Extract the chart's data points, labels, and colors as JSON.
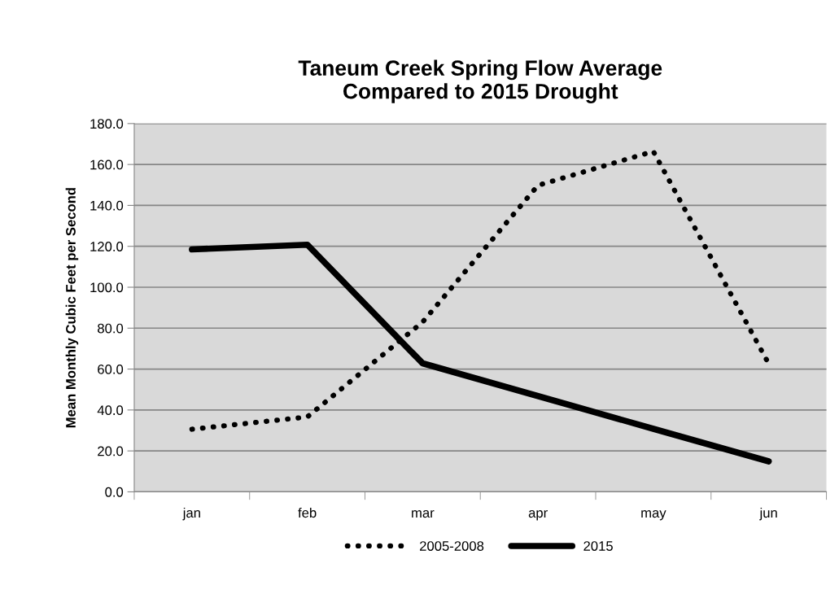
{
  "chart_data": {
    "type": "line",
    "title": "Taneum Creek Spring Flow Average\nCompared to 2015 Drought",
    "ylabel": "Mean Monthly Cubic Feet per Second",
    "categories": [
      "jan",
      "feb",
      "mar",
      "apr",
      "may",
      "jun"
    ],
    "series": [
      {
        "name": "2005-2008",
        "color": "#000000",
        "line_style": "dotted",
        "values": [
          30.6,
          36.6,
          83.0,
          149.8,
          166.4,
          62.6
        ]
      },
      {
        "name": "2015",
        "color": "#000000",
        "line_style": "solid",
        "values": [
          118.5,
          120.8,
          62.8,
          46.8,
          30.8,
          14.9
        ]
      }
    ],
    "ylim": [
      0,
      180
    ],
    "yticks": [
      {
        "value": 0,
        "label": "0.0"
      },
      {
        "value": 20,
        "label": "20.0"
      },
      {
        "value": 40,
        "label": "40.0"
      },
      {
        "value": 60,
        "label": "60.0"
      },
      {
        "value": 80,
        "label": "80.0"
      },
      {
        "value": 100,
        "label": "100.0"
      },
      {
        "value": 120,
        "label": "120.0"
      },
      {
        "value": 140,
        "label": "140.0"
      },
      {
        "value": 160,
        "label": "160.0"
      },
      {
        "value": 180,
        "label": "180.0"
      }
    ],
    "grid": "y",
    "legend": "bottom",
    "marker": "none"
  }
}
